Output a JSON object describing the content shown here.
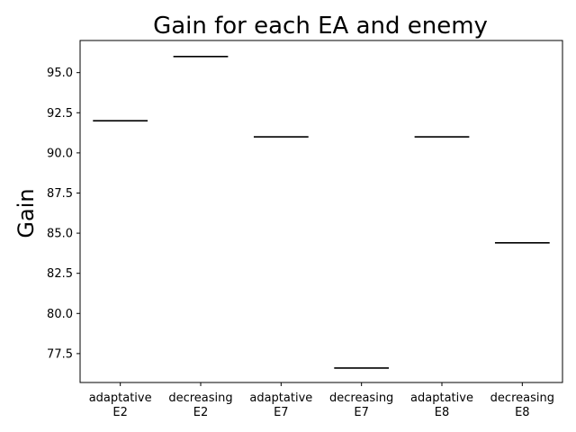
{
  "chart_data": {
    "type": "box",
    "title": "Gain for each EA and enemy",
    "xlabel": "",
    "ylabel": "Gain",
    "categories": [
      [
        "adaptative",
        "E2"
      ],
      [
        "decreasing",
        "E2"
      ],
      [
        "adaptative",
        "E7"
      ],
      [
        "decreasing",
        "E7"
      ],
      [
        "adaptative",
        "E8"
      ],
      [
        "decreasing",
        "E8"
      ]
    ],
    "values": [
      92.0,
      96.0,
      91.0,
      76.6,
      91.0,
      84.4
    ],
    "ylim": [
      75.7,
      97.0
    ],
    "yticks": [
      77.5,
      80.0,
      82.5,
      85.0,
      87.5,
      90.0,
      92.5,
      95.0
    ],
    "ytick_labels": [
      "77.5",
      "80.0",
      "82.5",
      "85.0",
      "87.5",
      "90.0",
      "92.5",
      "95.0"
    ],
    "grid": false,
    "colors": {
      "median": "#000000",
      "axes": "#000000",
      "background": "#ffffff"
    }
  }
}
